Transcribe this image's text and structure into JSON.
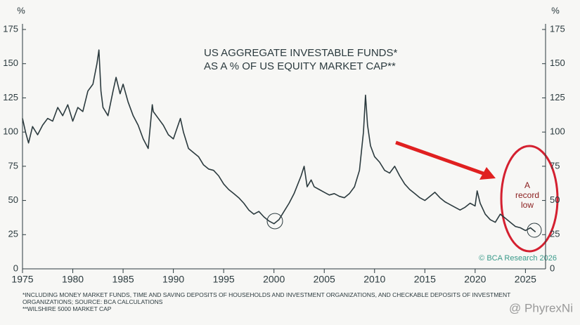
{
  "chart_data": {
    "type": "line",
    "title_lines": [
      "US AGGREGATE INVESTABLE FUNDS*",
      "AS A % OF US EQUITY MARKET CAP**"
    ],
    "y_unit": "%",
    "x": [
      1975.0,
      1975.3,
      1975.6,
      1976.0,
      1976.5,
      1977.0,
      1977.5,
      1978.0,
      1978.5,
      1979.0,
      1979.5,
      1980.0,
      1980.5,
      1981.0,
      1981.5,
      1982.0,
      1982.4,
      1982.6,
      1982.8,
      1983.0,
      1983.5,
      1984.0,
      1984.3,
      1984.7,
      1985.0,
      1985.5,
      1986.0,
      1986.5,
      1987.0,
      1987.5,
      1987.9,
      1988.0,
      1988.5,
      1989.0,
      1989.5,
      1990.0,
      1990.7,
      1991.0,
      1991.5,
      1992.0,
      1992.5,
      1993.0,
      1993.5,
      1994.0,
      1994.5,
      1995.0,
      1995.5,
      1996.0,
      1996.5,
      1997.0,
      1997.5,
      1998.0,
      1998.5,
      1999.0,
      1999.5,
      2000.0,
      2000.5,
      2001.0,
      2001.5,
      2002.0,
      2002.7,
      2003.0,
      2003.3,
      2003.7,
      2004.0,
      2004.5,
      2005.0,
      2005.5,
      2006.0,
      2006.5,
      2007.0,
      2007.5,
      2008.0,
      2008.5,
      2008.9,
      2009.1,
      2009.3,
      2009.6,
      2010.0,
      2010.5,
      2011.0,
      2011.5,
      2012.0,
      2012.5,
      2013.0,
      2013.5,
      2014.0,
      2014.5,
      2015.0,
      2015.5,
      2016.0,
      2016.5,
      2017.0,
      2017.5,
      2018.0,
      2018.5,
      2019.0,
      2019.5,
      2020.0,
      2020.2,
      2020.5,
      2021.0,
      2021.5,
      2022.0,
      2022.5,
      2023.0,
      2023.5,
      2024.0,
      2024.5,
      2025.0,
      2025.5,
      2026.0
    ],
    "values": [
      110,
      100,
      92,
      104,
      98,
      105,
      110,
      108,
      118,
      112,
      120,
      108,
      118,
      115,
      130,
      135,
      150,
      160,
      130,
      118,
      112,
      130,
      140,
      128,
      135,
      122,
      112,
      105,
      95,
      88,
      120,
      115,
      110,
      105,
      98,
      95,
      110,
      100,
      88,
      85,
      82,
      76,
      73,
      72,
      68,
      62,
      58,
      55,
      52,
      48,
      43,
      40,
      42,
      38,
      35,
      33,
      36,
      42,
      48,
      55,
      68,
      75,
      60,
      65,
      60,
      58,
      56,
      54,
      55,
      53,
      52,
      55,
      60,
      72,
      100,
      127,
      105,
      90,
      82,
      78,
      72,
      70,
      75,
      68,
      62,
      58,
      55,
      52,
      50,
      53,
      56,
      52,
      49,
      47,
      45,
      43,
      45,
      48,
      46,
      57,
      48,
      40,
      36,
      34,
      40,
      37,
      34,
      31,
      30,
      28,
      30,
      27
    ],
    "color": "#2b3a3e",
    "xlim": [
      1975,
      2027
    ],
    "xticks": [
      1975,
      1980,
      1985,
      1990,
      1995,
      2000,
      2005,
      2010,
      2015,
      2020,
      2025
    ],
    "ylim": [
      0,
      175
    ],
    "yticks": [
      0,
      25,
      50,
      75,
      100,
      125,
      150,
      175
    ],
    "annotation_lines": [
      "A",
      "record",
      "low"
    ],
    "source": "© BCA Research 2026",
    "footnotes": [
      "*INCLUDING MONEY MARKET FUNDS, TIME AND SAVING DEPOSITS OF HOUSEHOLDS AND INVESTMENT ORGANIZATIONS, AND CHECKABLE DEPOSITS OF INVESTMENT",
      "ORGANIZATIONS; SOURCE: BCA CALCULATIONS",
      "**WILSHIRE 5000 MARKET CAP"
    ],
    "watermark": "@ PhyrexNi"
  }
}
